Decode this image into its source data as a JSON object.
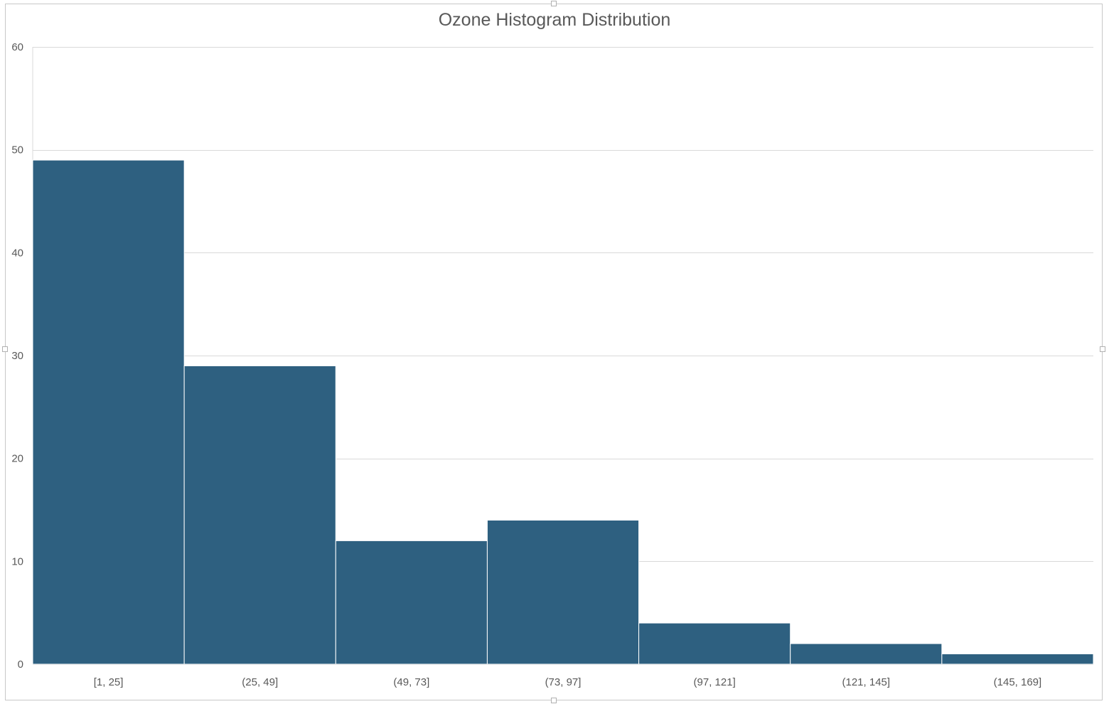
{
  "chart_data": {
    "type": "bar",
    "title": "Ozone Histogram Distribution",
    "categories": [
      "[1, 25]",
      "(25, 49]",
      "(49, 73]",
      "(73, 97]",
      "(97, 121]",
      "(121, 145]",
      "(145, 169]"
    ],
    "values": [
      49,
      29,
      12,
      14,
      4,
      2,
      1
    ],
    "xlabel": "",
    "ylabel": "",
    "ylim": [
      0,
      60
    ],
    "yticks": [
      0,
      10,
      20,
      30,
      40,
      50,
      60
    ],
    "grid": true,
    "legend": "none",
    "bar_color": "#2e6080",
    "grid_color": "#d9d9d9"
  }
}
